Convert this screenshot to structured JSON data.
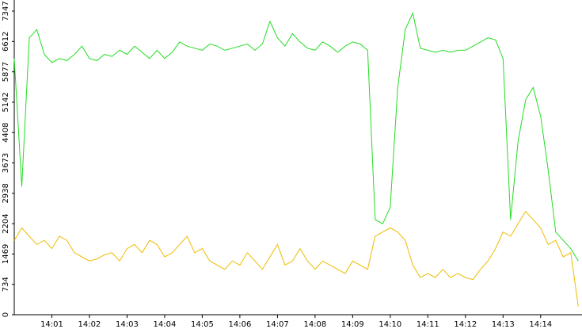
{
  "chart_data": {
    "type": "line",
    "x": [
      0,
      0.2,
      0.4,
      0.6,
      0.8,
      1,
      1.2,
      1.4,
      1.6,
      1.8,
      2,
      2.2,
      2.4,
      2.6,
      2.8,
      3,
      3.2,
      3.4,
      3.6,
      3.8,
      4,
      4.2,
      4.4,
      4.6,
      4.8,
      5,
      5.2,
      5.4,
      5.6,
      5.8,
      6,
      6.2,
      6.4,
      6.6,
      6.8,
      7,
      7.2,
      7.4,
      7.6,
      7.8,
      8,
      8.2,
      8.4,
      8.6,
      8.8,
      9,
      9.2,
      9.4,
      9.6,
      9.8,
      10,
      10.2,
      10.4,
      10.6,
      10.8,
      11,
      11.2,
      11.4,
      11.6,
      11.8,
      12,
      12.2,
      12.4,
      12.6,
      12.8,
      13,
      13.2,
      13.4,
      13.6,
      13.8,
      14,
      14.2,
      14.4,
      14.6,
      14.8,
      15
    ],
    "series": [
      {
        "color": "#22dd22",
        "values": [
          6200,
          3100,
          6700,
          6900,
          6300,
          6100,
          6200,
          6150,
          6300,
          6500,
          6200,
          6150,
          6300,
          6250,
          6400,
          6300,
          6500,
          6350,
          6200,
          6400,
          6200,
          6350,
          6600,
          6500,
          6450,
          6400,
          6550,
          6500,
          6400,
          6450,
          6500,
          6550,
          6400,
          6550,
          7100,
          6700,
          6500,
          6800,
          6600,
          6450,
          6400,
          6600,
          6500,
          6350,
          6500,
          6600,
          6550,
          6400,
          2300,
          2200,
          2600,
          5500,
          6900,
          7300,
          6450,
          6400,
          6350,
          6400,
          6350,
          6400,
          6400,
          6500,
          6600,
          6700,
          6650,
          6200,
          2300,
          4200,
          5200,
          5500,
          4800,
          3500,
          2000,
          1800,
          1600,
          1300
        ]
      },
      {
        "color": "#eebb00",
        "values": [
          1800,
          2100,
          1900,
          1700,
          1800,
          1600,
          1900,
          1800,
          1500,
          1400,
          1300,
          1350,
          1450,
          1500,
          1300,
          1600,
          1700,
          1500,
          1800,
          1700,
          1400,
          1500,
          1700,
          1900,
          1500,
          1600,
          1300,
          1200,
          1100,
          1300,
          1200,
          1500,
          1300,
          1100,
          1400,
          1700,
          1200,
          1300,
          1600,
          1300,
          1100,
          1300,
          1200,
          1100,
          1000,
          1300,
          1200,
          1100,
          1900,
          2000,
          2100,
          2000,
          1800,
          1200,
          900,
          1000,
          900,
          1100,
          900,
          1000,
          900,
          850,
          1100,
          1300,
          1600,
          2000,
          1900,
          2200,
          2500,
          2300,
          2100,
          1700,
          1800,
          1400,
          1500,
          200
        ]
      }
    ],
    "xlim": [
      0,
      15.1
    ],
    "xticks": [
      {
        "value": 1,
        "label": "14:01"
      },
      {
        "value": 2,
        "label": "14:02"
      },
      {
        "value": 3,
        "label": "14:03"
      },
      {
        "value": 4,
        "label": "14:04"
      },
      {
        "value": 5,
        "label": "14:05"
      },
      {
        "value": 6,
        "label": "14:06"
      },
      {
        "value": 7,
        "label": "14:07"
      },
      {
        "value": 8,
        "label": "14:08"
      },
      {
        "value": 9,
        "label": "14:09"
      },
      {
        "value": 10,
        "label": "14:10"
      },
      {
        "value": 11,
        "label": "14:11"
      },
      {
        "value": 12,
        "label": "14:12"
      },
      {
        "value": 13,
        "label": "14:13"
      },
      {
        "value": 14,
        "label": "14:14"
      }
    ],
    "ylim": [
      0,
      7347
    ],
    "yticks": [
      0,
      734,
      1469,
      2204,
      2938,
      3673,
      4408,
      5142,
      5877,
      6612,
      7347
    ]
  }
}
